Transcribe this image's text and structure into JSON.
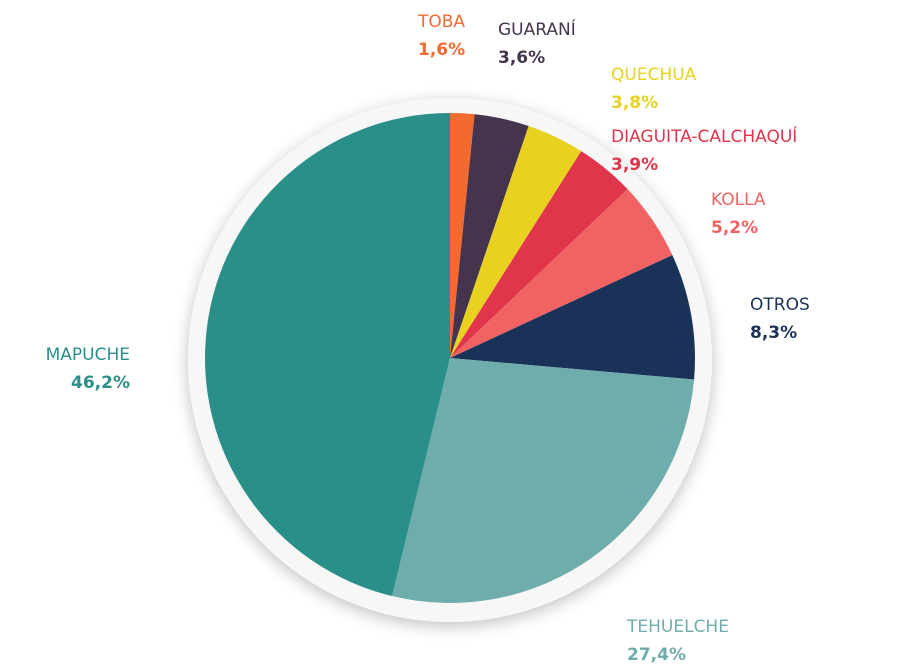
{
  "chart_data": {
    "type": "pie",
    "categories": [
      "TOBA",
      "GUARANÍ",
      "QUECHUA",
      "DIAGUITA-CALCHAQUÍ",
      "KOLLA",
      "OTROS",
      "TEHUELCHE",
      "MAPUCHE"
    ],
    "values": [
      1.6,
      3.6,
      3.8,
      3.9,
      5.2,
      8.3,
      27.4,
      46.2
    ],
    "value_labels": [
      "1,6%",
      "3,6%",
      "3,8%",
      "3,9%",
      "5,2%",
      "8,3%",
      "27,4%",
      "46,2%"
    ],
    "colors": [
      "#f26a2e",
      "#46344e",
      "#e8d21f",
      "#e0354b",
      "#f06362",
      "#1b3258",
      "#6fadac",
      "#2b8f89"
    ]
  }
}
